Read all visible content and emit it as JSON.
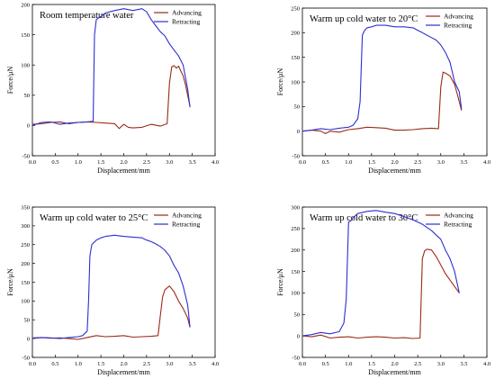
{
  "colors": {
    "advancing": "#9a2a17",
    "retracting": "#2d2fcf",
    "axis": "#000000"
  },
  "chart_data": [
    {
      "type": "line",
      "title": "Room temperature water",
      "xlabel": "Displacement/mm",
      "ylabel": "Force/μN",
      "xlim": [
        0,
        4
      ],
      "ylim": [
        -50,
        200
      ],
      "xticks": [
        0,
        0.5,
        1,
        1.5,
        2,
        2.5,
        3,
        3.5,
        4
      ],
      "yticks": [
        -50,
        0,
        50,
        100,
        150,
        200
      ],
      "xtick_labels": [
        "0.0",
        "0.5",
        "1.0",
        "1.5",
        "2.0",
        "2.5",
        "3.0",
        "3.5",
        "4.0"
      ],
      "ytick_labels": [
        "-50",
        "0",
        "50",
        "100",
        "150",
        "200"
      ],
      "grid": false,
      "legend": "top-right",
      "series": [
        {
          "name": "Advancing",
          "x": [
            0,
            0.2,
            0.4,
            0.6,
            0.8,
            1.0,
            1.2,
            1.4,
            1.6,
            1.8,
            1.9,
            2.0,
            2.1,
            2.2,
            2.4,
            2.6,
            2.8,
            2.95,
            3.0,
            3.05,
            3.1,
            3.15,
            3.2,
            3.25,
            3.3,
            3.35,
            3.4,
            3.45
          ],
          "y": [
            2,
            3,
            5,
            6,
            3,
            5,
            6,
            5,
            4,
            3,
            -5,
            2,
            -3,
            -4,
            -3,
            2,
            -1,
            3,
            70,
            97,
            99,
            95,
            98,
            90,
            82,
            68,
            50,
            32
          ]
        },
        {
          "name": "Retracting",
          "x": [
            0,
            0.2,
            0.4,
            0.6,
            0.8,
            1.0,
            1.2,
            1.33,
            1.36,
            1.4,
            1.45,
            1.5,
            1.6,
            1.8,
            2.0,
            2.2,
            2.4,
            2.5,
            2.6,
            2.7,
            2.8,
            2.9,
            3.0,
            3.1,
            3.2,
            3.3,
            3.4,
            3.45
          ],
          "y": [
            0,
            5,
            6,
            2,
            4,
            5,
            6,
            7,
            150,
            175,
            178,
            180,
            186,
            190,
            193,
            190,
            193,
            188,
            175,
            165,
            155,
            148,
            135,
            125,
            115,
            100,
            60,
            30
          ]
        }
      ]
    },
    {
      "type": "line",
      "title": "Warm up cold water to 20°C",
      "xlabel": "Displacement/mm",
      "ylabel": "Force/μN",
      "xlim": [
        0,
        4
      ],
      "ylim": [
        -50,
        250
      ],
      "xticks": [
        0,
        0.5,
        1,
        1.5,
        2,
        2.5,
        3,
        3.5,
        4
      ],
      "yticks": [
        -50,
        0,
        50,
        100,
        150,
        200,
        250
      ],
      "xtick_labels": [
        "0.0",
        "0.5",
        "1.0",
        "1.5",
        "2.0",
        "2.5",
        "3.0",
        "3.5",
        "4.0"
      ],
      "ytick_labels": [
        "-50",
        "0",
        "50",
        "100",
        "150",
        "200",
        "250"
      ],
      "grid": false,
      "legend": "top-right",
      "series": [
        {
          "name": "Advancing",
          "x": [
            0,
            0.2,
            0.4,
            0.5,
            0.6,
            0.8,
            1.0,
            1.2,
            1.4,
            1.6,
            1.8,
            2.0,
            2.2,
            2.4,
            2.6,
            2.8,
            2.95,
            3.0,
            3.05,
            3.1,
            3.2,
            3.3,
            3.35,
            3.4,
            3.45
          ],
          "y": [
            0,
            2,
            0,
            -5,
            0,
            -2,
            3,
            5,
            8,
            7,
            6,
            2,
            2,
            3,
            5,
            6,
            5,
            90,
            120,
            118,
            112,
            95,
            78,
            60,
            42
          ]
        },
        {
          "name": "Retracting",
          "x": [
            0,
            0.2,
            0.4,
            0.6,
            0.8,
            1.0,
            1.1,
            1.2,
            1.25,
            1.3,
            1.35,
            1.4,
            1.5,
            1.6,
            1.8,
            2.0,
            2.2,
            2.4,
            2.5,
            2.6,
            2.7,
            2.8,
            2.9,
            3.0,
            3.1,
            3.2,
            3.3,
            3.4,
            3.45
          ],
          "y": [
            0,
            2,
            5,
            3,
            6,
            8,
            12,
            25,
            60,
            195,
            205,
            210,
            212,
            215,
            215,
            212,
            212,
            210,
            205,
            200,
            195,
            190,
            185,
            175,
            160,
            140,
            100,
            80,
            45
          ]
        }
      ]
    },
    {
      "type": "line",
      "title": "Warm up cold water to 25°C",
      "xlabel": "Displacement/mm",
      "ylabel": "Force/μN",
      "xlim": [
        0,
        4
      ],
      "ylim": [
        -50,
        350
      ],
      "xticks": [
        0,
        0.5,
        1,
        1.5,
        2,
        2.5,
        3,
        3.5,
        4
      ],
      "yticks": [
        -50,
        0,
        50,
        100,
        150,
        200,
        250,
        300,
        350
      ],
      "xtick_labels": [
        "0.0",
        "0.5",
        "1.0",
        "1.5",
        "2.0",
        "2.5",
        "3.0",
        "3.5",
        "4.0"
      ],
      "ytick_labels": [
        "-50",
        "0",
        "50",
        "100",
        "150",
        "200",
        "250",
        "300",
        "350"
      ],
      "grid": false,
      "legend": "top-right",
      "series": [
        {
          "name": "Advancing",
          "x": [
            0,
            0.2,
            0.4,
            0.6,
            0.8,
            1.0,
            1.2,
            1.4,
            1.6,
            1.8,
            2.0,
            2.2,
            2.4,
            2.6,
            2.75,
            2.8,
            2.85,
            2.9,
            3.0,
            3.1,
            3.2,
            3.3,
            3.4,
            3.45
          ],
          "y": [
            2,
            3,
            1,
            2,
            0,
            -2,
            3,
            8,
            5,
            6,
            8,
            4,
            5,
            6,
            8,
            60,
            110,
            130,
            140,
            125,
            100,
            80,
            55,
            30
          ]
        },
        {
          "name": "Retracting",
          "x": [
            0,
            0.2,
            0.4,
            0.6,
            0.8,
            1.0,
            1.1,
            1.2,
            1.23,
            1.26,
            1.3,
            1.4,
            1.5,
            1.6,
            1.8,
            2.0,
            2.2,
            2.4,
            2.5,
            2.6,
            2.7,
            2.8,
            2.9,
            3.0,
            3.1,
            3.2,
            3.3,
            3.4,
            3.45
          ],
          "y": [
            0,
            3,
            2,
            0,
            3,
            5,
            8,
            20,
            100,
            220,
            250,
            262,
            268,
            272,
            275,
            272,
            270,
            268,
            262,
            258,
            252,
            245,
            235,
            220,
            195,
            175,
            140,
            90,
            30
          ]
        }
      ]
    },
    {
      "type": "line",
      "title": "Warm up cold water to 30°C",
      "xlabel": "Displacement/mm",
      "ylabel": "Force/μN",
      "xlim": [
        0,
        4
      ],
      "ylim": [
        -50,
        300
      ],
      "xticks": [
        0,
        0.5,
        1,
        1.5,
        2,
        2.5,
        3,
        3.5,
        4
      ],
      "yticks": [
        -50,
        0,
        50,
        100,
        150,
        200,
        250,
        300
      ],
      "xtick_labels": [
        "0.0",
        "0.5",
        "1.0",
        "1.5",
        "2.0",
        "2.5",
        "3.0",
        "3.5",
        "4.0"
      ],
      "ytick_labels": [
        "-50",
        "0",
        "50",
        "100",
        "150",
        "200",
        "250",
        "300"
      ],
      "grid": false,
      "legend": "top-right",
      "series": [
        {
          "name": "Advancing",
          "x": [
            0,
            0.2,
            0.4,
            0.6,
            0.8,
            1.0,
            1.2,
            1.4,
            1.6,
            1.8,
            2.0,
            2.2,
            2.4,
            2.55,
            2.6,
            2.65,
            2.7,
            2.8,
            2.9,
            3.0,
            3.1,
            3.2,
            3.3,
            3.4
          ],
          "y": [
            0,
            -2,
            2,
            -5,
            -3,
            -2,
            -5,
            -3,
            -2,
            -3,
            -5,
            -4,
            -6,
            -5,
            180,
            198,
            202,
            200,
            185,
            165,
            145,
            130,
            115,
            100
          ]
        },
        {
          "name": "Retracting",
          "x": [
            0,
            0.2,
            0.4,
            0.6,
            0.8,
            0.9,
            0.95,
            1.0,
            1.05,
            1.1,
            1.2,
            1.4,
            1.6,
            1.8,
            2.0,
            2.2,
            2.4,
            2.6,
            2.8,
            3.0,
            3.1,
            3.2,
            3.3,
            3.4
          ],
          "y": [
            0,
            3,
            8,
            5,
            10,
            30,
            85,
            265,
            268,
            275,
            285,
            290,
            292,
            288,
            285,
            278,
            270,
            260,
            245,
            225,
            200,
            180,
            150,
            100
          ]
        }
      ]
    }
  ]
}
